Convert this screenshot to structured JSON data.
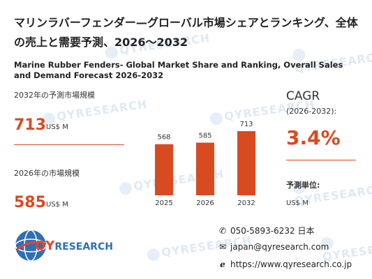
{
  "title_jp": "マリンラバーフェンダー—グローバル市場シェアとランキング、全体の売上と需要予測、2026〜2032",
  "title_en": "Marine Rubber Fenders- Global Market Share and Ranking, Overall Sales and Demand Forecast 2026-2032",
  "forecast_2032": {
    "label": "2032年の予測市場規模",
    "value": "713",
    "unit": "US$ M"
  },
  "market_2026": {
    "label": "2026年の市場規模",
    "value": "585",
    "unit": "US$ M"
  },
  "cagr": {
    "title": "CAGR",
    "years": "(2026-2032):",
    "value": "3.4%"
  },
  "forecast_unit": {
    "label": "予測単位:",
    "value": "US$ M"
  },
  "chart_data": {
    "type": "bar",
    "categories": [
      "2025",
      "2026",
      "2032"
    ],
    "values": [
      568,
      585,
      713
    ],
    "data_labels": [
      "568",
      "585",
      "713"
    ],
    "title": "",
    "xlabel": "",
    "ylabel": "",
    "color": "#d84b20"
  },
  "brand": {
    "name_prefix": "QY",
    "name_suffix": "RESEARCH",
    "watermark": "QYRESEARCH"
  },
  "contact": {
    "phone": "050-5893-6232 日本",
    "email": "japan@qyresearch.com",
    "website": "https://www.qyresearch.co.jp"
  },
  "icons": {
    "phone": "phone-icon",
    "email": "email-icon",
    "web": "web-icon"
  }
}
